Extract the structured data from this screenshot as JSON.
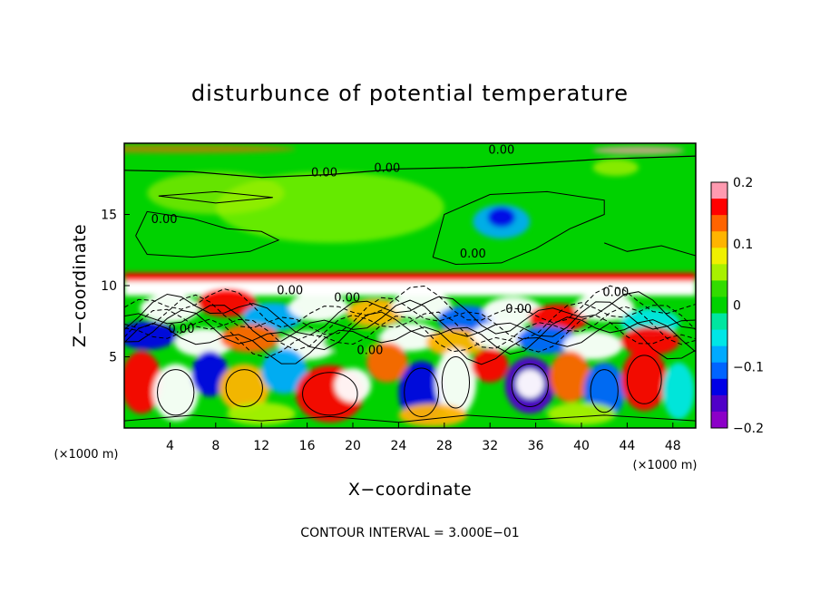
{
  "chart_data": {
    "type": "heatmap",
    "title": "disturbunce of potential temperature",
    "xlabel": "X−coordinate",
    "ylabel": "Z−coordinate",
    "x_unit": "(×1000 m)",
    "x_unit_right": "(×1000 m)",
    "xlim": [
      0,
      50
    ],
    "ylim": [
      0,
      20
    ],
    "x_ticks": [
      "4",
      "8",
      "12",
      "16",
      "20",
      "24",
      "28",
      "32",
      "36",
      "40",
      "44",
      "48"
    ],
    "y_ticks": [
      "5",
      "10",
      "15"
    ],
    "colorbar": {
      "range": [
        -0.2,
        0.2
      ],
      "ticks": [
        "0.2",
        "0.1",
        "0",
        "−0.1",
        "−0.2"
      ],
      "colors": [
        "#ff9ab0",
        "#ff0000",
        "#ff6400",
        "#ffb400",
        "#f0f000",
        "#a8f000",
        "#32dc00",
        "#00d200",
        "#00e6a0",
        "#00e6e6",
        "#00aaff",
        "#0064ff",
        "#0000e6",
        "#5000c8",
        "#8c00c8"
      ]
    },
    "contour_labels": [
      {
        "text": "0.00",
        "x": 33,
        "z": 19.6
      },
      {
        "text": "0.00",
        "x": 17.5,
        "z": 18.0
      },
      {
        "text": "0.00",
        "x": 23.0,
        "z": 18.3
      },
      {
        "text": "0.00",
        "x": 3.5,
        "z": 14.7
      },
      {
        "text": "0.00",
        "x": 30.5,
        "z": 12.3
      },
      {
        "text": "0.00",
        "x": 14.5,
        "z": 9.7
      },
      {
        "text": "0.00",
        "x": 19.5,
        "z": 9.2
      },
      {
        "text": "0.00",
        "x": 34.5,
        "z": 8.4
      },
      {
        "text": "0.00",
        "x": 43.0,
        "z": 9.6
      },
      {
        "text": "0.00",
        "x": 5.0,
        "z": 7.0
      },
      {
        "text": "0.00",
        "x": 21.5,
        "z": 5.5
      }
    ],
    "contour_interval": "CONTOUR INTERVAL = 3.000E−01",
    "legend": "right colorbar",
    "grid": false
  }
}
